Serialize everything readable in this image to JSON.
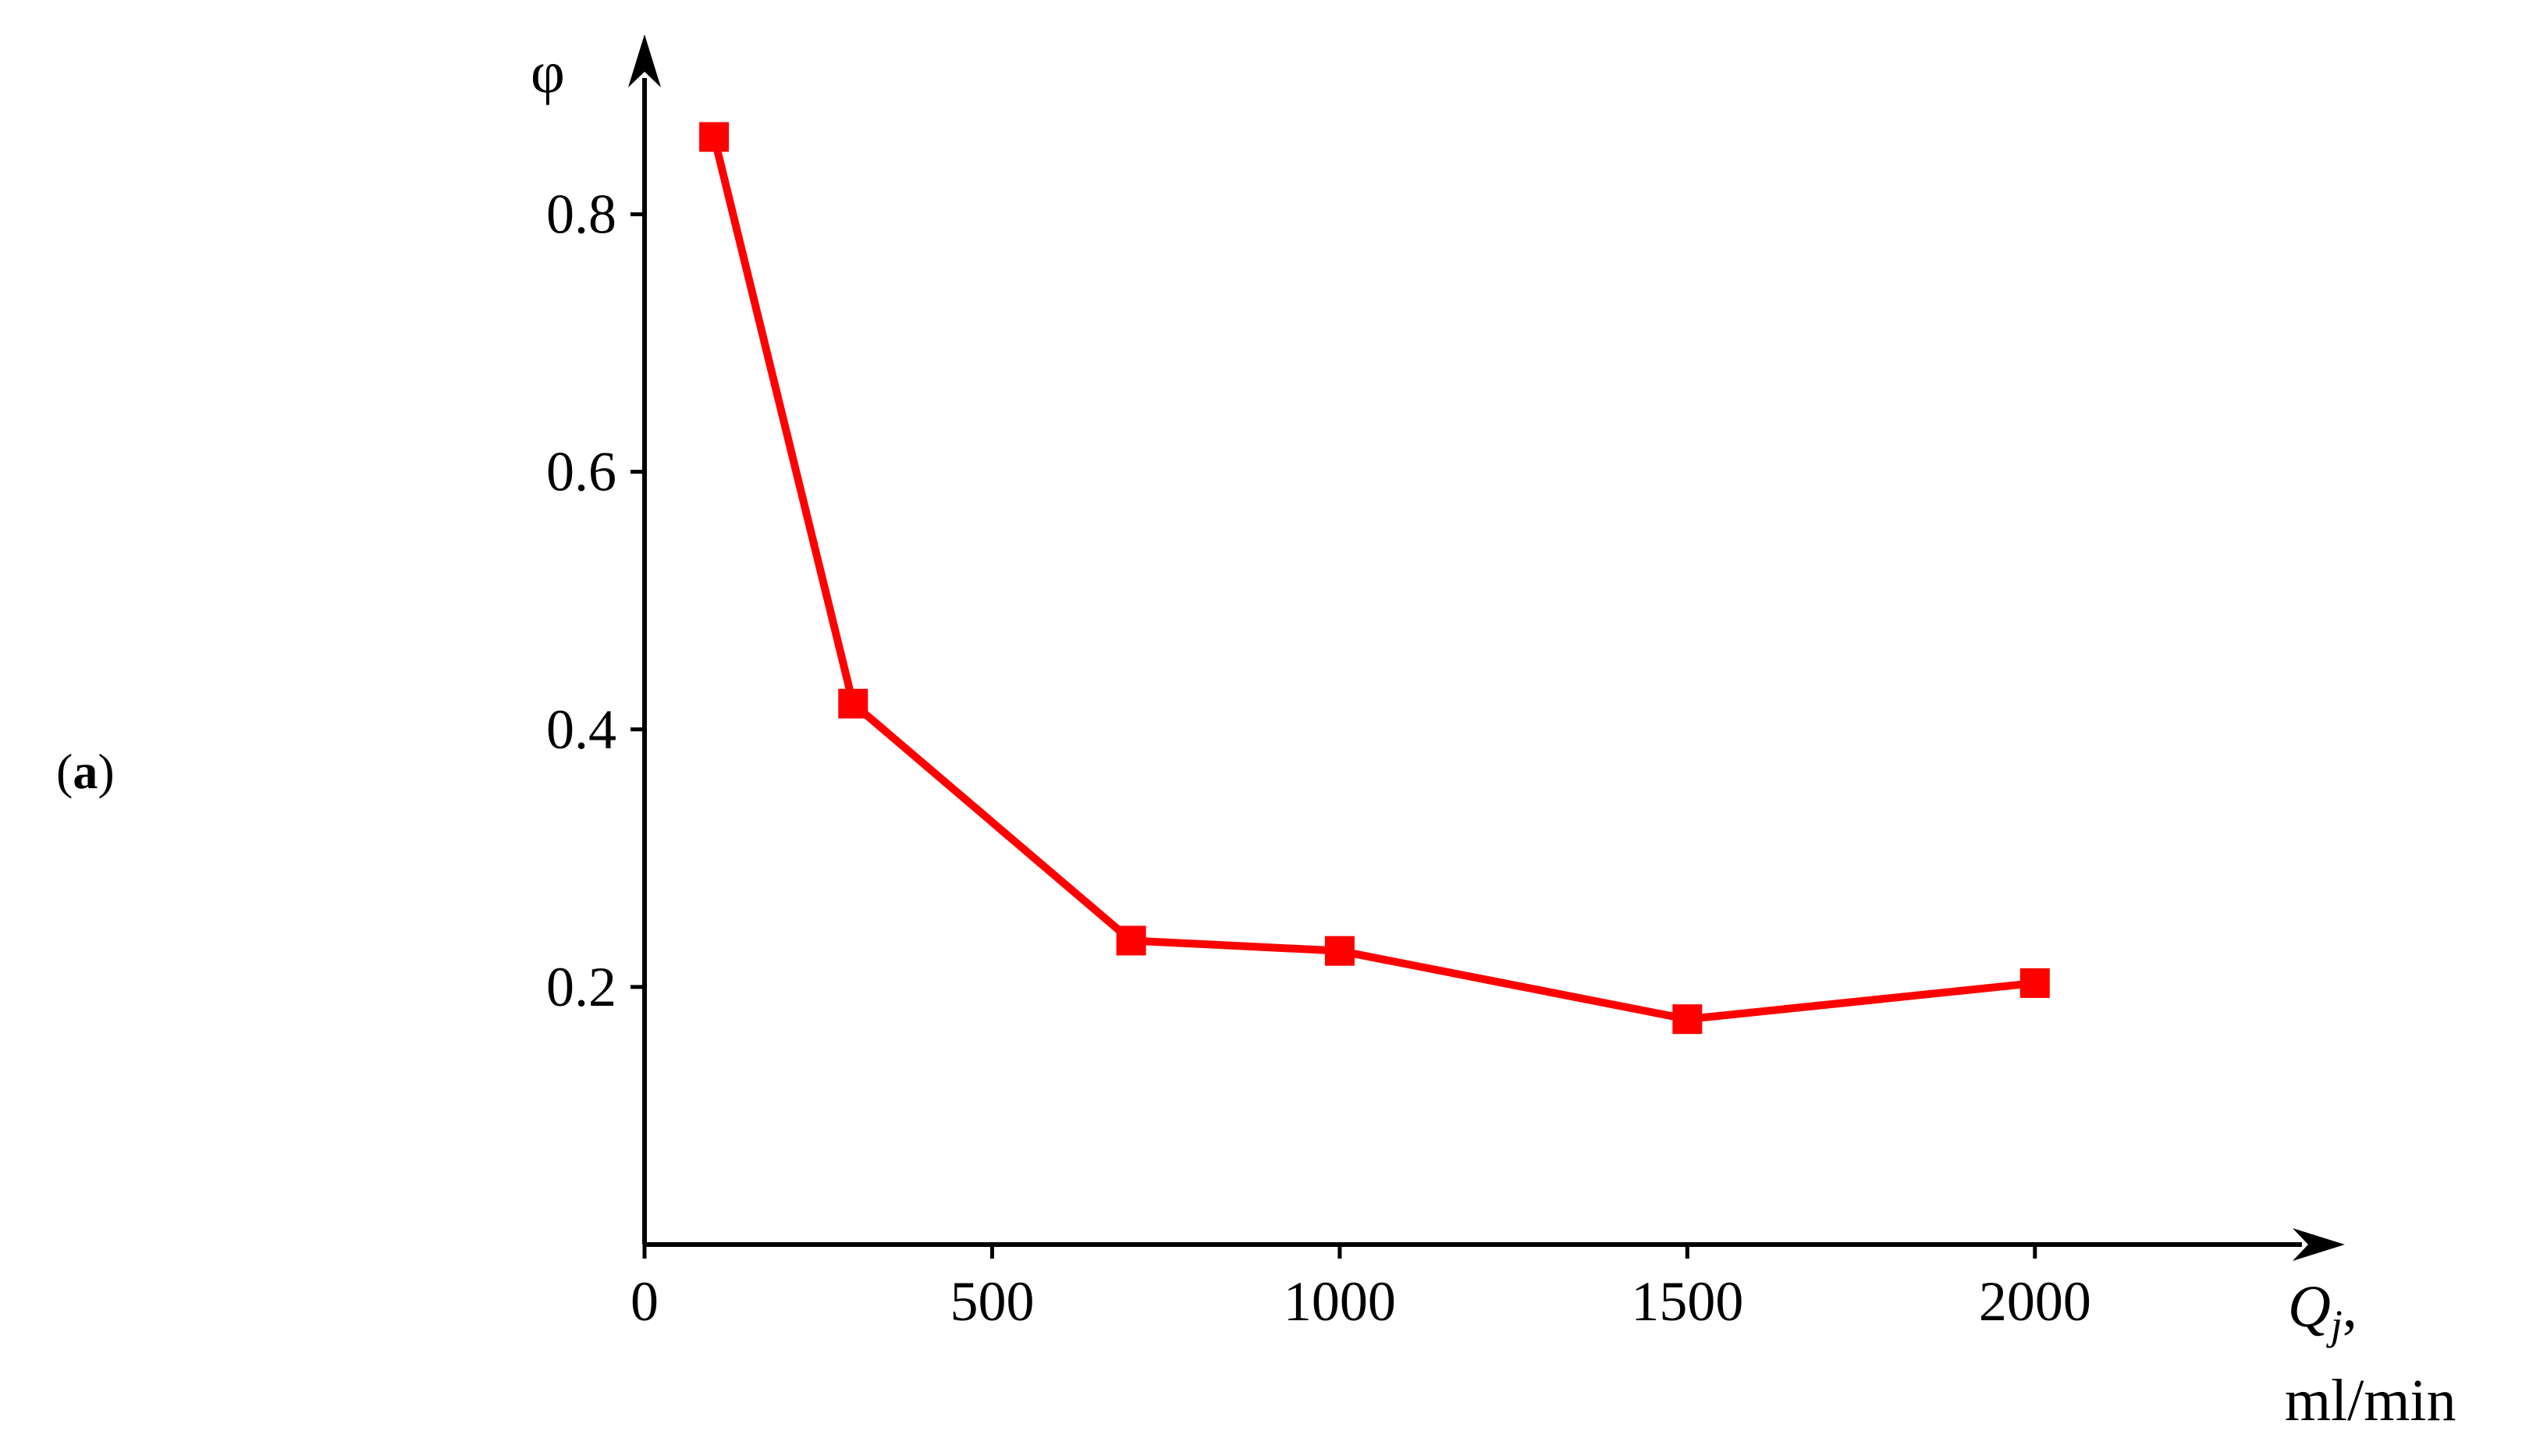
{
  "panel_label": {
    "open": "(",
    "letter": "a",
    "close": ")"
  },
  "chart_data": {
    "type": "line",
    "title": "",
    "xlabel": "Q",
    "xlabel_subscript": "j",
    "xlabel_suffix": ",",
    "xlabel_unit": "ml/min",
    "ylabel": "φ",
    "xlim": [
      0,
      2200
    ],
    "ylim": [
      0,
      0.93
    ],
    "x_ticks": [
      0,
      500,
      1000,
      1500,
      2000
    ],
    "y_ticks": [
      0.2,
      0.4,
      0.6,
      0.8
    ],
    "x_tick_labels": [
      "0",
      "500",
      "1000",
      "1500",
      "2000"
    ],
    "y_tick_labels": [
      "0.2",
      "0.4",
      "0.6",
      "0.8"
    ],
    "grid": false,
    "legend": "none",
    "series": [
      {
        "color": "#ff0000",
        "marker": "square",
        "x": [
          100,
          300,
          700,
          1000,
          1500,
          2000
        ],
        "y": [
          0.86,
          0.42,
          0.236,
          0.228,
          0.175,
          0.203
        ]
      }
    ]
  }
}
